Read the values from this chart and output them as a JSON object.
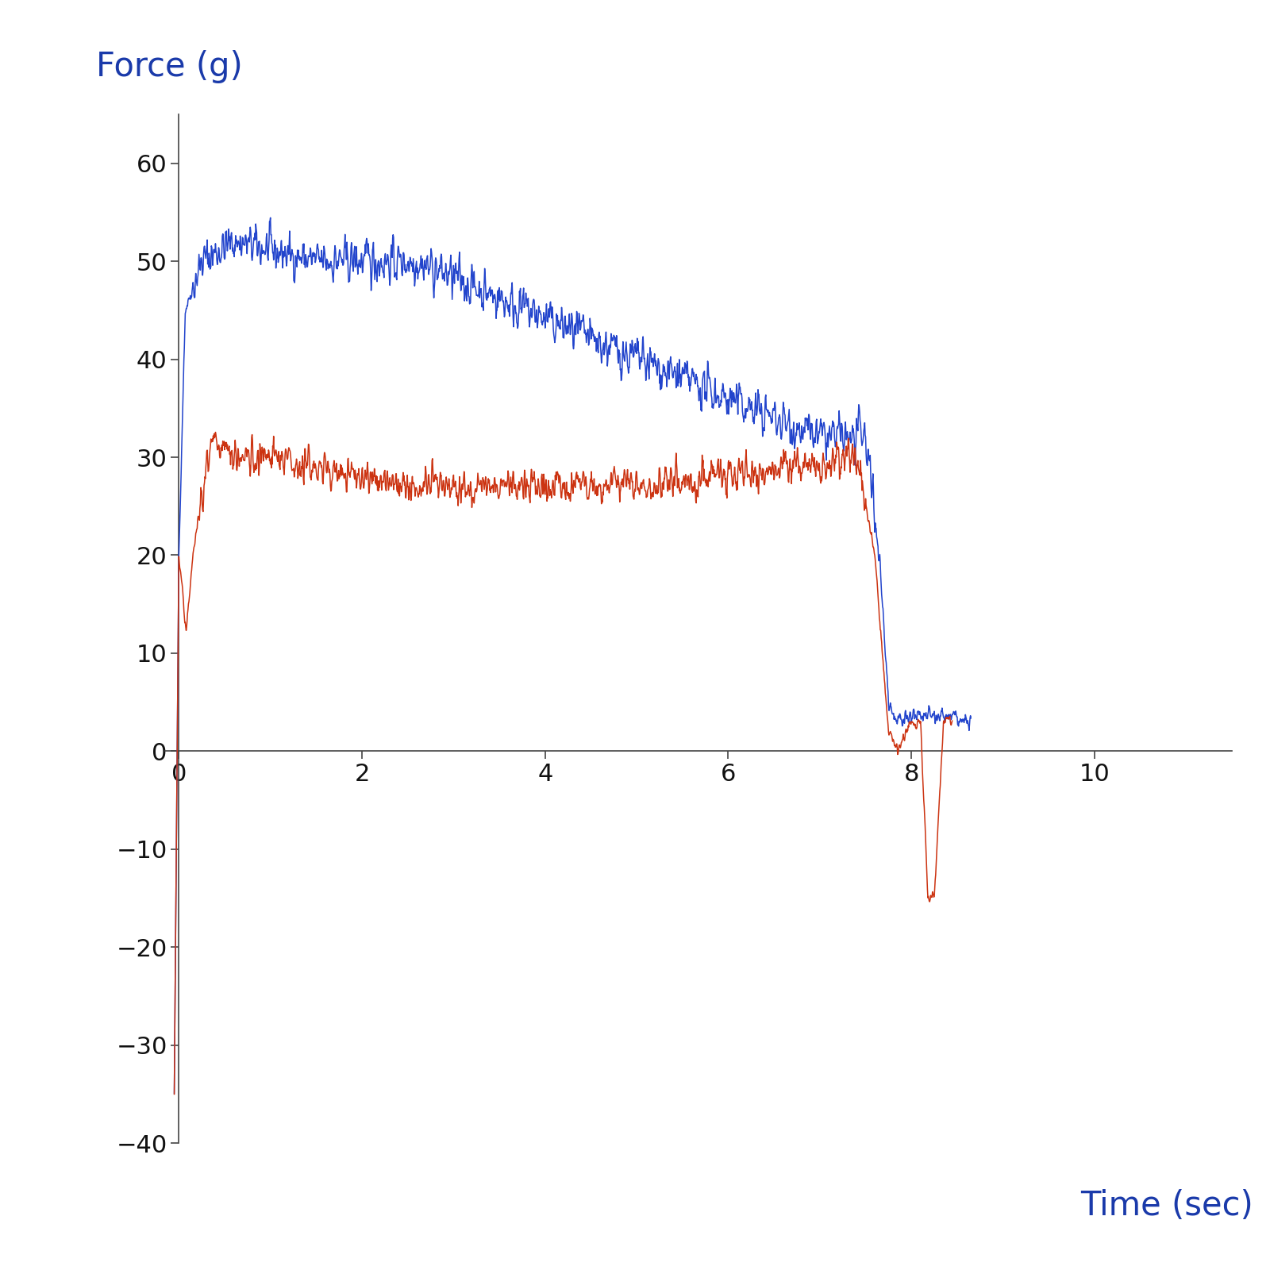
{
  "ylabel": "Force (g)",
  "xlabel": "Time (sec)",
  "ylabel_color": "#1a3aaa",
  "xlabel_color": "#1a3aaa",
  "axis_color": "#444444",
  "tick_color": "#111111",
  "blue_color": "#2244cc",
  "red_color": "#cc3311",
  "ylim": [
    -40,
    65
  ],
  "xlim": [
    -0.15,
    11.5
  ],
  "yticks": [
    -40,
    -30,
    -20,
    -10,
    0,
    10,
    20,
    30,
    40,
    50,
    60
  ],
  "xticks": [
    0,
    2,
    4,
    6,
    8,
    10
  ],
  "ylabel_fontsize": 30,
  "xlabel_fontsize": 30,
  "tick_fontsize": 22,
  "seed": 42
}
